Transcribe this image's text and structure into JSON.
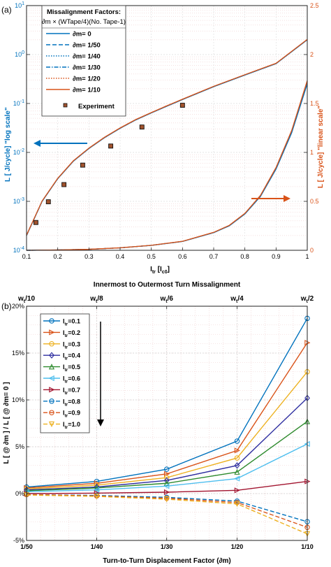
{
  "colors": {
    "blue": "#0072BD",
    "red": "#D95319",
    "yellow": "#EDB120",
    "purple": "#2E2EA0",
    "green": "#2E8B2E",
    "cyan": "#4DBEEE",
    "brown": "#A2142F",
    "axis_left": "#0072BD",
    "axis_right": "#D95319",
    "grid": "#E6B0B0"
  },
  "chart_data": [
    {
      "type": "line",
      "panel_label": "(a)",
      "xlabel_main": "I",
      "xlabel_sub": "tr",
      "xlabel_bracket_main": " [I",
      "xlabel_bracket_sub": "c0",
      "xlabel_bracket_end": "]",
      "x_title": "Innermost to Outermost Turn Missalignment",
      "xlim": [
        0.1,
        1
      ],
      "x_ticks": [
        "0.1",
        "0.2",
        "0.3",
        "0.4",
        "0.5",
        "0.6",
        "0.7",
        "0.8",
        "0.9",
        "1"
      ],
      "ylabel_left": "L [ J/cycle] \"log scale\"",
      "ylabel_right": "L [ J/cycle] \"linear scale\"",
      "ylim_left_log": [
        0.0001,
        10
      ],
      "y_ticks_left": [
        {
          "base": "10",
          "exp": "-4"
        },
        {
          "base": "10",
          "exp": "-3"
        },
        {
          "base": "10",
          "exp": "-2"
        },
        {
          "base": "10",
          "exp": "-1"
        },
        {
          "base": "10",
          "exp": "0"
        },
        {
          "base": "10",
          "exp": "1"
        }
      ],
      "ylim_right": [
        0,
        2.5
      ],
      "y_ticks_right": [
        "0",
        "0.5",
        "1",
        "1.5",
        "2",
        "2.5"
      ],
      "grid": true,
      "legend_title_line1": "Missalignment Factors:",
      "legend_title_line2": "∂m × (WTape/4)(No. Tape-1)",
      "legend_position": "top-left",
      "series": [
        {
          "name": "∂m= 0",
          "color_key": "blue",
          "style": "solid"
        },
        {
          "name": "∂m= 1/50",
          "color_key": "blue",
          "style": "dash"
        },
        {
          "name": "∂m= 1/40",
          "color_key": "blue",
          "style": "dot"
        },
        {
          "name": "∂m= 1/30",
          "color_key": "blue",
          "style": "dashdot"
        },
        {
          "name": "∂m= 1/20",
          "color_key": "red",
          "style": "dot"
        },
        {
          "name": "∂m= 1/10",
          "color_key": "red",
          "style": "solid"
        }
      ],
      "experiment_name": "Experiment",
      "curve_log_scale": {
        "x": [
          0.1,
          0.15,
          0.2,
          0.25,
          0.3,
          0.35,
          0.4,
          0.45,
          0.5,
          0.55,
          0.6,
          0.7,
          0.8,
          0.9,
          1.0
        ],
        "y": [
          0.0002,
          0.001,
          0.0029,
          0.0066,
          0.012,
          0.02,
          0.031,
          0.046,
          0.064,
          0.088,
          0.12,
          0.22,
          0.38,
          0.65,
          2.0
        ]
      },
      "curve_linear_scale": {
        "x": [
          0.1,
          0.2,
          0.3,
          0.4,
          0.5,
          0.6,
          0.7,
          0.75,
          0.8,
          0.85,
          0.9,
          0.95,
          1.0
        ],
        "y": [
          0.0,
          0.003,
          0.01,
          0.025,
          0.05,
          0.09,
          0.18,
          0.25,
          0.37,
          0.55,
          0.83,
          1.2,
          1.7
        ]
      },
      "experiment": {
        "x": [
          0.13,
          0.17,
          0.22,
          0.28,
          0.37,
          0.47,
          0.6
        ],
        "y": [
          0.00037,
          0.00098,
          0.0022,
          0.0055,
          0.0135,
          0.033,
          0.092
        ]
      },
      "annotations": [
        "left arrow: log scale curve",
        "right arrow: linear scale curve"
      ]
    },
    {
      "type": "line",
      "panel_label": "(b)",
      "xlabel": "Turn-to-Turn Displacement Factor (∂m)",
      "x_tick_labels": [
        "1/50",
        "1/40",
        "1/30",
        "1/20",
        "1/10"
      ],
      "x": [
        0.02,
        0.025,
        0.0333,
        0.05,
        0.1
      ],
      "x_scale": "reciprocal",
      "top_tick_labels": [
        {
          "main": "w",
          "sub": "t",
          "tail": "/10"
        },
        {
          "main": "w",
          "sub": "t",
          "tail": "/8"
        },
        {
          "main": "w",
          "sub": "t",
          "tail": "/6"
        },
        {
          "main": "w",
          "sub": "t",
          "tail": "/4"
        },
        {
          "main": "w",
          "sub": "t",
          "tail": "/2"
        }
      ],
      "ylabel": "L [ @ ∂m ] / L [ @ ∂m= 0 ]",
      "ylim": [
        -5,
        20
      ],
      "y_ticks": [
        "-5%",
        "0%",
        "5%",
        "10%",
        "15%",
        "20%"
      ],
      "grid": true,
      "legend_position": "top-left",
      "series": [
        {
          "name": "Itr=0.1",
          "color_key": "blue",
          "marker": "circle",
          "style": "solid",
          "values": [
            0.7,
            1.3,
            2.6,
            5.6,
            18.7
          ]
        },
        {
          "name": "Itr=0.2",
          "color_key": "red",
          "marker": "triangle-right",
          "style": "solid",
          "values": [
            0.6,
            1.1,
            2.1,
            4.6,
            16.1
          ]
        },
        {
          "name": "Itr=0.3",
          "color_key": "yellow",
          "marker": "circle",
          "style": "solid",
          "values": [
            0.5,
            0.9,
            1.7,
            3.8,
            13.0
          ]
        },
        {
          "name": "Itr=0.4",
          "color_key": "purple",
          "marker": "diamond",
          "style": "solid",
          "values": [
            0.4,
            0.7,
            1.4,
            3.0,
            10.2
          ]
        },
        {
          "name": "Itr=0.5",
          "color_key": "green",
          "marker": "triangle-up",
          "style": "solid",
          "values": [
            0.3,
            0.6,
            1.1,
            2.3,
            7.7
          ]
        },
        {
          "name": "Itr=0.6",
          "color_key": "cyan",
          "marker": "triangle-left",
          "style": "solid",
          "values": [
            0.2,
            0.4,
            0.8,
            1.6,
            5.3
          ]
        },
        {
          "name": "Itr=0.7",
          "color_key": "brown",
          "marker": "triangle-right",
          "style": "solid",
          "values": [
            0.0,
            0.05,
            0.15,
            0.35,
            1.3
          ]
        },
        {
          "name": "Itr=0.8",
          "color_key": "blue",
          "marker": "circle",
          "style": "dash",
          "values": [
            -0.1,
            -0.2,
            -0.4,
            -0.8,
            -3.0
          ]
        },
        {
          "name": "Itr=0.9",
          "color_key": "red",
          "marker": "circle",
          "style": "dash",
          "values": [
            -0.1,
            -0.25,
            -0.5,
            -0.95,
            -3.6
          ]
        },
        {
          "name": "Itr=1.0",
          "color_key": "yellow",
          "marker": "triangle-down",
          "style": "dash",
          "values": [
            -0.15,
            -0.3,
            -0.6,
            -1.1,
            -4.3
          ]
        }
      ],
      "legend_labels": [
        {
          "main": "I",
          "sub": "tr",
          "tail": "=0.1"
        },
        {
          "main": "I",
          "sub": "tr",
          "tail": "=0.2"
        },
        {
          "main": "I",
          "sub": "tr",
          "tail": "=0.3"
        },
        {
          "main": "I",
          "sub": "tr",
          "tail": "=0.4"
        },
        {
          "main": "I",
          "sub": "tr",
          "tail": "=0.5"
        },
        {
          "main": "I",
          "sub": "tr",
          "tail": "=0.6"
        },
        {
          "main": "I",
          "sub": "tr",
          "tail": "=0.7"
        },
        {
          "main": "I",
          "sub": "tr",
          "tail": "=0.8"
        },
        {
          "main": "I",
          "sub": "tr",
          "tail": "=0.9"
        },
        {
          "main": "I",
          "sub": "tr",
          "tail": "=1.0"
        }
      ]
    }
  ]
}
